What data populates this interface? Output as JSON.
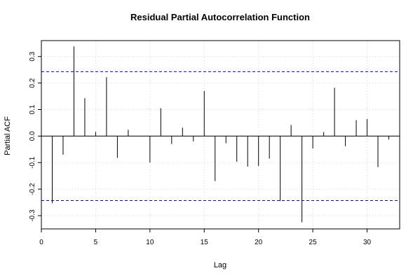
{
  "chart_data": {
    "type": "bar",
    "title": "Residual Partial Autocorrelation Function",
    "xlabel": "Lag",
    "ylabel": "Partial ACF",
    "xlim": [
      0,
      33
    ],
    "ylim": [
      -0.35,
      0.36
    ],
    "xticks": [
      0,
      5,
      10,
      15,
      20,
      25,
      30
    ],
    "yticks": [
      -0.3,
      -0.2,
      -0.1,
      0.0,
      0.1,
      0.2,
      0.3
    ],
    "ytick_labels": [
      "-0.3",
      "-0.2",
      "-0.1",
      "0.0",
      "0.1",
      "0.2",
      "0.3"
    ],
    "grid": true,
    "lags": [
      1,
      2,
      3,
      4,
      5,
      6,
      7,
      8,
      9,
      10,
      11,
      12,
      13,
      14,
      15,
      16,
      17,
      18,
      19,
      20,
      21,
      22,
      23,
      24,
      25,
      26,
      27,
      28,
      29,
      30,
      31,
      32
    ],
    "values": [
      -0.253,
      -0.07,
      0.338,
      0.143,
      0.016,
      0.222,
      -0.082,
      0.024,
      0.0,
      -0.1,
      0.105,
      -0.03,
      0.032,
      -0.02,
      0.17,
      -0.17,
      -0.027,
      -0.097,
      -0.115,
      -0.113,
      -0.085,
      -0.245,
      0.042,
      -0.325,
      -0.047,
      0.015,
      0.182,
      -0.038,
      0.06,
      0.064,
      -0.117,
      -0.013
    ],
    "confidence_bounds": [
      0.243,
      -0.243
    ],
    "colors": {
      "bars": "#000000",
      "bounds": "#0000cc",
      "grid": "#d3d3d3",
      "zero_line": "#000000"
    }
  }
}
